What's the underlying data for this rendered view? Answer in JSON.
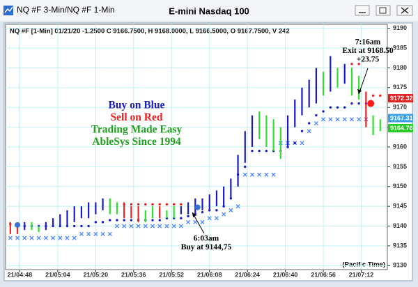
{
  "window_title": "NQ #F 3-Min/NQ #F 1-Min",
  "chart_data": {
    "type": "bar",
    "title": "E-mini Nasdaq 100",
    "subtitle": "NQ #F [1-Min] 01/21/20 -1.2500 C 9166.7500, H 9168.0000, L 9166.5000, O 9167.7500, V 242",
    "x_note": "(Pacific Time)",
    "xlim": [
      282,
      443
    ],
    "xticks": [
      {
        "value": 288,
        "label": "21/04:48"
      },
      {
        "value": 304,
        "label": "21/05:04"
      },
      {
        "value": 320,
        "label": "21/05:20"
      },
      {
        "value": 336,
        "label": "21/05:36"
      },
      {
        "value": 352,
        "label": "21/05:52"
      },
      {
        "value": 368,
        "label": "21/06:08"
      },
      {
        "value": 384,
        "label": "21/06:24"
      },
      {
        "value": 400,
        "label": "21/06:40"
      },
      {
        "value": 416,
        "label": "21/06:56"
      },
      {
        "value": 432,
        "label": "21/07:12"
      }
    ],
    "ylim": [
      9129,
      9191
    ],
    "yticks": [
      9130,
      9135,
      9140,
      9145,
      9150,
      9155,
      9160,
      9165,
      9170,
      9175,
      9180,
      9185,
      9190
    ],
    "grid": true,
    "colors": {
      "blue": "#1a1acc",
      "green": "#2ee02e",
      "red": "#ee2020",
      "cross": "#4a86ff"
    },
    "bars": {
      "x": [
        284,
        287,
        290,
        293,
        296,
        299,
        302,
        305,
        308,
        311,
        314,
        317,
        320,
        323,
        326,
        329,
        332,
        335,
        338,
        341,
        344,
        347,
        350,
        353,
        356,
        359,
        362,
        365,
        368,
        371,
        374,
        377,
        380,
        383,
        386,
        389,
        392,
        395,
        398,
        401,
        404,
        407,
        410,
        413,
        416,
        419,
        422,
        425,
        428,
        431,
        434,
        437,
        440
      ],
      "high": [
        9141,
        9140.5,
        9141,
        9141,
        9140,
        9141,
        9142,
        9143,
        9144,
        9145,
        9145,
        9146,
        9146,
        9147,
        9147,
        9146,
        9146,
        9145,
        9145,
        9144,
        9145,
        9145,
        9144,
        9145,
        9145,
        9146,
        9147,
        9147,
        9148,
        9149,
        9150,
        9152,
        9158,
        9164,
        9168,
        9169,
        9168,
        9167,
        9165,
        9168,
        9172,
        9175,
        9177,
        9180,
        9179,
        9183,
        9180,
        9181,
        9180,
        9178,
        9174,
        9168,
        9167
      ],
      "low": [
        9138,
        9138,
        9139,
        9139,
        9138.5,
        9139,
        9140,
        9140,
        9140,
        9141,
        9142,
        9142,
        9143,
        9144,
        9143,
        9143,
        9142,
        9142,
        9141,
        9141,
        9142,
        9142,
        9142,
        9142,
        9143,
        9143,
        9143,
        9144,
        9144,
        9145,
        9145,
        9147,
        9150,
        9156,
        9160,
        9162,
        9160,
        9159,
        9157,
        9160,
        9165,
        9168,
        9170,
        9171,
        9173,
        9174,
        9175,
        9176,
        9173,
        9172,
        9165,
        9163,
        9164
      ],
      "color": [
        "red",
        "red",
        "blue",
        "green",
        "green",
        "blue",
        "blue",
        "blue",
        "blue",
        "blue",
        "blue",
        "blue",
        "blue",
        "blue",
        "green",
        "green",
        "red",
        "red",
        "red",
        "green",
        "green",
        "red",
        "green",
        "green",
        "blue",
        "blue",
        "blue",
        "blue",
        "blue",
        "blue",
        "blue",
        "blue",
        "blue",
        "blue",
        "blue",
        "green",
        "green",
        "green",
        "green",
        "blue",
        "blue",
        "blue",
        "blue",
        "blue",
        "green",
        "blue",
        "green",
        "blue",
        "green",
        "green",
        "red",
        "green",
        "green"
      ]
    },
    "support": [
      null,
      null,
      9140,
      9140,
      9140,
      9140,
      9140,
      9140,
      9140,
      9140,
      9140,
      9140,
      9141,
      9141,
      9141.5,
      9141.5,
      9141.5,
      9141.5,
      9141.5,
      9141.5,
      9141.5,
      9141.5,
      9142,
      9142,
      9142,
      9142.5,
      9143,
      9143.5,
      9144,
      9144,
      9145,
      9147,
      9153,
      9155,
      9159,
      9159,
      9159,
      9159,
      9159,
      9160,
      9161,
      9164,
      9166,
      9168,
      9169,
      9170,
      9170,
      9170,
      9171,
      9171,
      9171,
      null,
      null
    ],
    "resistance": [
      9140.5,
      9140.5,
      null,
      null,
      null,
      null,
      null,
      null,
      null,
      null,
      null,
      null,
      null,
      null,
      null,
      null,
      9145.5,
      9145.5,
      9145.5,
      9145.5,
      9145.5,
      9145.5,
      9145.5,
      9145.5,
      9145.5,
      null,
      null,
      null,
      null,
      null,
      null,
      null,
      null,
      null,
      null,
      null,
      null,
      null,
      null,
      null,
      null,
      null,
      null,
      null,
      null,
      null,
      null,
      null,
      9181,
      9181,
      null,
      9173,
      9173
    ],
    "crosses": [
      9137,
      9137,
      9137,
      9137,
      9137,
      9137,
      9137,
      9137,
      9137,
      9137,
      9138,
      9138,
      9138,
      9138,
      9138,
      9140,
      9140,
      9140,
      9140,
      9140,
      9140,
      9140,
      9140,
      9140,
      9140,
      9141,
      9141,
      9141,
      9142,
      9142,
      9143,
      9144,
      9145,
      9153,
      9153,
      9153,
      9153,
      9153,
      9161,
      9161,
      9161,
      9161,
      9164,
      9166,
      9167,
      9167,
      9167,
      9167,
      9167,
      9167,
      9167,
      null,
      null
    ],
    "signals": [
      {
        "x": 287,
        "value": 9140.3,
        "color": "#3a6fd8"
      },
      {
        "x": 363,
        "value": 9144.75,
        "color": "#3a6fd8"
      },
      {
        "x": 436,
        "value": 9171,
        "color": "#ff1a1a"
      }
    ],
    "price_boxes": [
      {
        "value": 9172.32,
        "color": "#e02020"
      },
      {
        "value": 9167.31,
        "color": "#3aa0e8"
      },
      {
        "value": 9164.76,
        "color": "#22cc22"
      }
    ],
    "slogans": [
      {
        "text": "Buy on Blue",
        "color": "#1a1acc"
      },
      {
        "text": "Sell on Red",
        "color": "#ee2020"
      },
      {
        "text": "Trading Made Easy",
        "color": "#20a020"
      },
      {
        "text": "AbleSys Since 1994",
        "color": "#20a020"
      }
    ],
    "exit_note": [
      "7:16am",
      "Exit at 9168.50",
      "+23.75"
    ],
    "buy_note": [
      "6:03am",
      "Buy at 9144,75"
    ]
  }
}
